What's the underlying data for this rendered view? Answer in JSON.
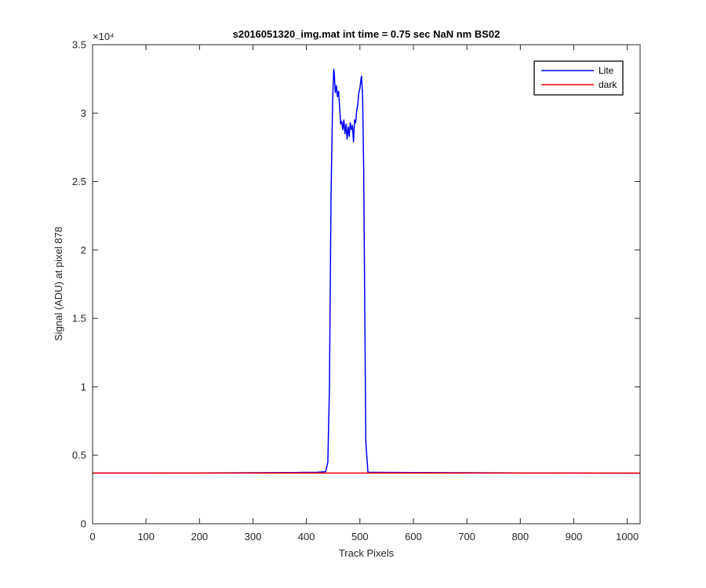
{
  "chart_data": {
    "type": "line",
    "title": "s2016051320_img.mat int time = 0.75 sec  NaN nm BS02",
    "xlabel": "Track Pixels",
    "ylabel": "Signal (ADU) at pixel 878",
    "xlim": [
      0,
      1024
    ],
    "ylim": [
      0,
      35000
    ],
    "x_ticks": [
      0,
      100,
      200,
      300,
      400,
      500,
      600,
      700,
      800,
      900,
      1000
    ],
    "x_tick_labels": [
      "0",
      "100",
      "200",
      "300",
      "400",
      "500",
      "600",
      "700",
      "800",
      "900",
      "1000"
    ],
    "y_ticks": [
      0,
      5000,
      10000,
      15000,
      20000,
      25000,
      30000,
      35000
    ],
    "y_tick_labels": [
      "0",
      "0.5",
      "1",
      "1.5",
      "2",
      "2.5",
      "3",
      "3.5"
    ],
    "y_exponent_label": "×10⁴",
    "grid": false,
    "legend_position": "top-right",
    "series": [
      {
        "name": "Lite",
        "color": "#0000ff",
        "x": [
          0,
          100,
          200,
          300,
          380,
          420,
          436,
          440,
          443,
          446,
          449,
          451,
          452,
          454,
          456,
          458,
          460,
          462,
          464,
          466,
          468,
          470,
          472,
          474,
          476,
          478,
          480,
          482,
          484,
          486,
          488,
          490,
          492,
          494,
          496,
          498,
          500,
          502,
          503,
          505,
          507,
          509,
          511,
          515,
          530,
          600,
          700,
          800,
          900,
          1024
        ],
        "y": [
          3700,
          3700,
          3710,
          3720,
          3740,
          3760,
          3800,
          4500,
          10000,
          24000,
          31000,
          33200,
          32900,
          31500,
          32000,
          31200,
          31600,
          30500,
          29200,
          29400,
          28800,
          29500,
          28500,
          29200,
          28100,
          29000,
          28300,
          29300,
          28800,
          29100,
          27900,
          29500,
          29300,
          30200,
          30600,
          31500,
          31800,
          32500,
          32700,
          31300,
          26000,
          16000,
          6000,
          3750,
          3750,
          3740,
          3720,
          3710,
          3700,
          3690
        ]
      },
      {
        "name": "dark",
        "color": "#ff0000",
        "x": [
          0,
          1024
        ],
        "y": [
          3700,
          3700
        ]
      }
    ]
  }
}
